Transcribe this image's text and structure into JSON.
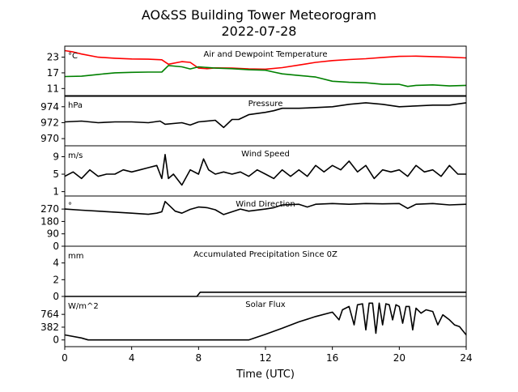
{
  "figure": {
    "title": "AO&SS Building Tower Meteorogram",
    "subtitle": "2022-07-28",
    "xlabel": "Time (UTC)"
  },
  "chart_data": [
    {
      "type": "line",
      "title": "Air and Dewpoint Temperature",
      "unit_label": "°C",
      "yticks": [
        11,
        17,
        23
      ],
      "ylim": [
        8,
        27.2
      ],
      "xlim": [
        0,
        24
      ],
      "xticks": [
        0,
        4,
        8,
        12,
        16,
        20,
        24
      ],
      "series": [
        {
          "color": "#ff0000",
          "x": [
            0,
            0.5,
            1,
            2,
            3,
            4,
            5,
            5.8,
            6.2,
            7,
            7.5,
            8,
            8.5,
            9,
            10,
            11,
            12,
            13,
            14,
            15,
            16,
            17,
            18,
            19,
            20,
            21,
            22,
            23,
            24
          ],
          "y": [
            25.5,
            25,
            24.2,
            23,
            22.6,
            22.3,
            22.2,
            22,
            20.3,
            21.3,
            21,
            18.8,
            18.6,
            18.9,
            18.8,
            18.5,
            18.4,
            19,
            20,
            21,
            21.7,
            22.1,
            22.4,
            22.9,
            23.3,
            23.4,
            23.2,
            23,
            22.7
          ]
        },
        {
          "color": "#008000",
          "x": [
            0,
            1,
            2,
            3,
            4,
            5,
            5.8,
            6.2,
            7,
            7.5,
            8,
            9,
            10,
            11,
            12,
            12.5,
            13,
            14,
            15,
            16,
            17,
            18,
            19,
            20,
            20.5,
            21,
            22,
            23,
            24
          ],
          "y": [
            15.6,
            15.7,
            16.4,
            17,
            17.2,
            17.3,
            17.3,
            19.8,
            19.3,
            18.5,
            19.3,
            18.8,
            18.6,
            18.2,
            18,
            17.3,
            16.6,
            16,
            15.4,
            13.8,
            13.4,
            13.2,
            12.6,
            12.6,
            11.8,
            12.2,
            12.4,
            12,
            12.2
          ]
        }
      ]
    },
    {
      "type": "line",
      "title": "Pressure",
      "unit_label": "hPa",
      "yticks": [
        970,
        972,
        974
      ],
      "ylim": [
        969.1,
        975.4
      ],
      "xlim": [
        0,
        24
      ],
      "series": [
        {
          "color": "#000000",
          "x": [
            0,
            1,
            2,
            3,
            4,
            5,
            5.7,
            6,
            7,
            7.5,
            8,
            9,
            9.5,
            10,
            10.4,
            11,
            12,
            12.5,
            13,
            14,
            15,
            16,
            17,
            18,
            19,
            20,
            21,
            22,
            23,
            24
          ],
          "y": [
            972.1,
            972.2,
            972,
            972.1,
            972.1,
            972,
            972.2,
            971.8,
            972,
            971.7,
            972.1,
            972.3,
            971.4,
            972.4,
            972.4,
            973,
            973.3,
            973.5,
            973.8,
            973.8,
            973.9,
            974,
            974.3,
            974.5,
            974.3,
            974,
            974.1,
            974.2,
            974.2,
            974.5
          ]
        }
      ]
    },
    {
      "type": "line",
      "title": "Wind Speed",
      "unit_label": "m/s",
      "yticks": [
        1,
        5,
        9
      ],
      "ylim": [
        0,
        11.5
      ],
      "xlim": [
        0,
        24
      ],
      "series": [
        {
          "color": "#000000",
          "x": [
            0,
            0.5,
            1,
            1.5,
            2,
            2.5,
            3,
            3.5,
            4,
            4.5,
            5,
            5.5,
            5.8,
            6,
            6.2,
            6.5,
            7,
            7.5,
            8,
            8.3,
            8.6,
            9,
            9.5,
            10,
            10.5,
            11,
            11.5,
            12,
            12.5,
            13,
            13.5,
            14,
            14.5,
            15,
            15.5,
            16,
            16.5,
            17,
            17.5,
            18,
            18.5,
            19,
            19.5,
            20,
            20.5,
            21,
            21.5,
            22,
            22.5,
            23,
            23.5,
            24
          ],
          "y": [
            4.5,
            5.5,
            4,
            6,
            4.5,
            5,
            5,
            6,
            5.5,
            6,
            6.5,
            7,
            4,
            9.5,
            4,
            5,
            2.5,
            6,
            5,
            8.5,
            6,
            5,
            5.5,
            5,
            5.5,
            4.5,
            6,
            5,
            4,
            6,
            4.5,
            6,
            4.5,
            7,
            5.5,
            7,
            6,
            8,
            5.5,
            7,
            4,
            6,
            5.5,
            6,
            4.5,
            7,
            5.5,
            6,
            4.5,
            7,
            5,
            5
          ]
        }
      ]
    },
    {
      "type": "line",
      "title": "Wind Direction",
      "unit_label": "°",
      "yticks": [
        0,
        90,
        180,
        270
      ],
      "ylim": [
        0,
        365
      ],
      "xlim": [
        0,
        24
      ],
      "series": [
        {
          "color": "#000000",
          "x": [
            0,
            1,
            2,
            3,
            4,
            5,
            5.5,
            5.8,
            6,
            6.3,
            6.6,
            7,
            7.5,
            8,
            8.5,
            9,
            9.5,
            10,
            10.5,
            11,
            12,
            12.5,
            13,
            14,
            14.5,
            15,
            16,
            17,
            18,
            19,
            20,
            20.5,
            21,
            22,
            23,
            24
          ],
          "y": [
            270,
            262,
            255,
            248,
            240,
            232,
            240,
            250,
            325,
            290,
            255,
            240,
            268,
            285,
            280,
            265,
            230,
            250,
            270,
            255,
            270,
            280,
            300,
            305,
            285,
            305,
            310,
            305,
            310,
            308,
            310,
            275,
            305,
            310,
            300,
            305
          ]
        }
      ]
    },
    {
      "type": "line",
      "title": "Accumulated Precipitation Since 0Z",
      "unit_label": "mm",
      "yticks": [
        0,
        2,
        4
      ],
      "ylim": [
        0,
        6
      ],
      "xlim": [
        0,
        24
      ],
      "series": [
        {
          "color": "#000000",
          "x": [
            0,
            7.9,
            8,
            8.1,
            24
          ],
          "y": [
            0,
            0,
            0.25,
            0.5,
            0.5
          ]
        }
      ]
    },
    {
      "type": "line",
      "title": "Solar Flux",
      "unit_label": "W/m^2",
      "yticks": [
        0,
        382,
        764
      ],
      "ylim": [
        -200,
        1300
      ],
      "xlim": [
        0,
        24
      ],
      "series": [
        {
          "color": "#000000",
          "x": [
            0,
            1,
            1.4,
            2,
            4,
            6,
            8,
            10,
            11,
            12,
            13,
            14,
            15,
            16,
            16.4,
            16.6,
            17,
            17.3,
            17.5,
            17.8,
            18,
            18.2,
            18.4,
            18.6,
            18.8,
            19,
            19.2,
            19.4,
            19.6,
            19.8,
            20,
            20.2,
            20.4,
            20.6,
            20.8,
            21,
            21.3,
            21.6,
            22,
            22.3,
            22.6,
            23,
            23.3,
            23.6,
            24
          ],
          "y": [
            150,
            60,
            0,
            0,
            0,
            0,
            0,
            0,
            0,
            170,
            350,
            540,
            700,
            830,
            600,
            900,
            1000,
            450,
            1050,
            1080,
            300,
            1100,
            1100,
            200,
            1100,
            450,
            1080,
            1050,
            600,
            1050,
            1000,
            500,
            1000,
            1000,
            300,
            950,
            800,
            900,
            850,
            450,
            750,
            600,
            450,
            400,
            150
          ]
        }
      ]
    }
  ]
}
